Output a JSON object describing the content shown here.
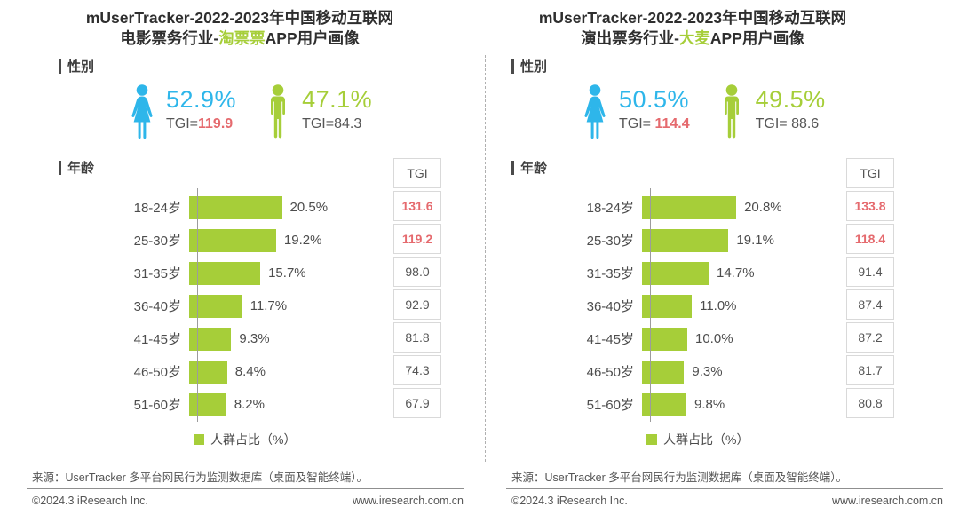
{
  "colors": {
    "green": "#a6ce39",
    "blue": "#2eb6ea",
    "red": "#e56a6e"
  },
  "panels": [
    {
      "title_line1": "mUserTracker-2022-2023年中国移动互联网",
      "title_line2_pre": "电影票务行业-",
      "title_line2_hl": "淘票票",
      "title_line2_post": "APP用户画像",
      "sec_gender": "性别",
      "sec_age": "年龄",
      "female": {
        "pct": "52.9%",
        "tgi_label": "TGI=",
        "tgi": "119.9"
      },
      "male": {
        "pct": "47.1%",
        "tgi_label": "TGI=",
        "tgi": "84.3"
      },
      "tgi_header": "TGI",
      "age_rows": [
        {
          "label": "18-24岁",
          "pct": "20.5%",
          "value": 20.5,
          "tgi": "131.6",
          "tgi_high": true
        },
        {
          "label": "25-30岁",
          "pct": "19.2%",
          "value": 19.2,
          "tgi": "119.2",
          "tgi_high": true
        },
        {
          "label": "31-35岁",
          "pct": "15.7%",
          "value": 15.7,
          "tgi": "98.0",
          "tgi_high": false
        },
        {
          "label": "36-40岁",
          "pct": "11.7%",
          "value": 11.7,
          "tgi": "92.9",
          "tgi_high": false
        },
        {
          "label": "41-45岁",
          "pct": "9.3%",
          "value": 9.3,
          "tgi": "81.8",
          "tgi_high": false
        },
        {
          "label": "46-50岁",
          "pct": "8.4%",
          "value": 8.4,
          "tgi": "74.3",
          "tgi_high": false
        },
        {
          "label": "51-60岁",
          "pct": "8.2%",
          "value": 8.2,
          "tgi": "67.9",
          "tgi_high": false
        }
      ],
      "legend": "人群占比（%）",
      "source": "来源：UserTracker 多平台网民行为监测数据库（桌面及智能终端）。",
      "copyright": "©2024.3 iResearch Inc.",
      "website": "www.iresearch.com.cn"
    },
    {
      "title_line1": "mUserTracker-2022-2023年中国移动互联网",
      "title_line2_pre": "演出票务行业-",
      "title_line2_hl": "大麦",
      "title_line2_post": "APP用户画像",
      "sec_gender": "性别",
      "sec_age": "年龄",
      "female": {
        "pct": "50.5%",
        "tgi_label": "TGI= ",
        "tgi": "114.4"
      },
      "male": {
        "pct": "49.5%",
        "tgi_label": "TGI= ",
        "tgi": "88.6"
      },
      "tgi_header": "TGI",
      "age_rows": [
        {
          "label": "18-24岁",
          "pct": "20.8%",
          "value": 20.8,
          "tgi": "133.8",
          "tgi_high": true
        },
        {
          "label": "25-30岁",
          "pct": "19.1%",
          "value": 19.1,
          "tgi": "118.4",
          "tgi_high": true
        },
        {
          "label": "31-35岁",
          "pct": "14.7%",
          "value": 14.7,
          "tgi": "91.4",
          "tgi_high": false
        },
        {
          "label": "36-40岁",
          "pct": "11.0%",
          "value": 11.0,
          "tgi": "87.4",
          "tgi_high": false
        },
        {
          "label": "41-45岁",
          "pct": "10.0%",
          "value": 10.0,
          "tgi": "87.2",
          "tgi_high": false
        },
        {
          "label": "46-50岁",
          "pct": "9.3%",
          "value": 9.3,
          "tgi": "81.7",
          "tgi_high": false
        },
        {
          "label": "51-60岁",
          "pct": "9.8%",
          "value": 9.8,
          "tgi": "80.8",
          "tgi_high": false
        }
      ],
      "legend": "人群占比（%）",
      "source": "来源：UserTracker 多平台网民行为监测数据库（桌面及智能终端）。",
      "copyright": "©2024.3 iResearch Inc.",
      "website": "www.iresearch.com.cn"
    }
  ],
  "chart_data": [
    {
      "type": "bar",
      "orientation": "horizontal",
      "title": "mUserTracker-2022-2023年中国移动互联网电影票务行业-淘票票APP用户画像",
      "categories": [
        "18-24岁",
        "25-30岁",
        "31-35岁",
        "36-40岁",
        "41-45岁",
        "46-50岁",
        "51-60岁"
      ],
      "series": [
        {
          "name": "人群占比（%）",
          "values": [
            20.5,
            19.2,
            15.7,
            11.7,
            9.3,
            8.4,
            8.2
          ]
        },
        {
          "name": "TGI",
          "values": [
            131.6,
            119.2,
            98.0,
            92.9,
            81.8,
            74.3,
            67.9
          ]
        }
      ],
      "gender": {
        "female_percent": 52.9,
        "female_tgi": 119.9,
        "male_percent": 47.1,
        "male_tgi": 84.3
      },
      "xlabel": "人群占比（%）",
      "ylabel": "年龄",
      "xlim": [
        0,
        25
      ],
      "grid": false,
      "legend_position": "bottom"
    },
    {
      "type": "bar",
      "orientation": "horizontal",
      "title": "mUserTracker-2022-2023年中国移动互联网演出票务行业-大麦APP用户画像",
      "categories": [
        "18-24岁",
        "25-30岁",
        "31-35岁",
        "36-40岁",
        "41-45岁",
        "46-50岁",
        "51-60岁"
      ],
      "series": [
        {
          "name": "人群占比（%）",
          "values": [
            20.8,
            19.1,
            14.7,
            11.0,
            10.0,
            9.3,
            9.8
          ]
        },
        {
          "name": "TGI",
          "values": [
            133.8,
            118.4,
            91.4,
            87.4,
            87.2,
            81.7,
            80.8
          ]
        }
      ],
      "gender": {
        "female_percent": 50.5,
        "female_tgi": 114.4,
        "male_percent": 49.5,
        "male_tgi": 88.6
      },
      "xlabel": "人群占比（%）",
      "ylabel": "年龄",
      "xlim": [
        0,
        25
      ],
      "grid": false,
      "legend_position": "bottom"
    }
  ]
}
